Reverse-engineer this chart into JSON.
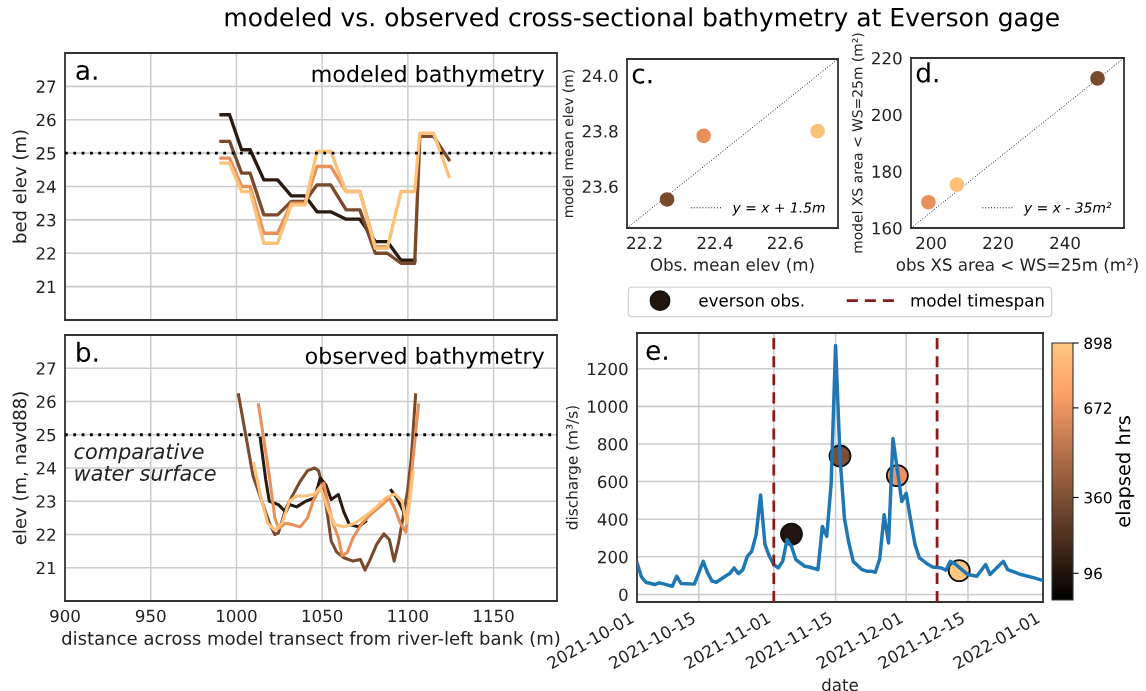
{
  "chart_data": [
    {
      "type": "line",
      "title": "modeled vs. observed cross-sectional bathymetry at Everson gage",
      "ylabel": "bed elev (m)",
      "annotations": [
        "a.",
        "modeled bathymetry"
      ],
      "xlim": [
        900,
        1187
      ],
      "xticks": [
        900,
        950,
        1000,
        1050,
        1100,
        1150
      ],
      "ylim": [
        20,
        28
      ],
      "yticks": [
        21,
        22,
        23,
        24,
        25,
        26,
        27
      ],
      "tick_labels": "y",
      "grid": true,
      "x": [
        991,
        996,
        1003,
        1008,
        1016,
        1024,
        1032,
        1040,
        1047,
        1055,
        1064,
        1072,
        1081,
        1088,
        1096,
        1104,
        1107,
        1115,
        1124
      ],
      "ref_lines": [
        {
          "axis": "y",
          "value": 25,
          "color": "#000000",
          "line_style": "dotted"
        }
      ],
      "series": [
        {
          "color": "#2b1a10",
          "values": [
            26.15,
            26.15,
            25.1,
            25.1,
            24.2,
            24.2,
            23.72,
            23.72,
            23.24,
            23.24,
            23.02,
            23.02,
            22.35,
            22.35,
            21.79,
            21.79,
            null,
            null,
            null
          ]
        },
        {
          "color": "#7a4a2c",
          "values": [
            25.35,
            25.35,
            24.4,
            24.4,
            23.15,
            23.15,
            23.55,
            23.55,
            24.05,
            24.05,
            23.3,
            23.3,
            22.0,
            22.0,
            21.7,
            21.7,
            25.5,
            25.5,
            24.8
          ]
        },
        {
          "color": "#e8915a",
          "values": [
            24.85,
            24.85,
            24.0,
            24.0,
            22.6,
            22.6,
            23.5,
            23.5,
            24.6,
            24.6,
            23.85,
            23.85,
            22.2,
            22.2,
            null,
            null,
            null,
            null,
            null
          ]
        },
        {
          "color": "#fdc27a",
          "values": [
            24.7,
            24.7,
            23.85,
            23.85,
            22.3,
            22.3,
            23.45,
            23.45,
            25.05,
            25.05,
            23.85,
            23.85,
            22.15,
            22.15,
            23.85,
            23.85,
            25.6,
            25.6,
            24.3
          ]
        }
      ]
    },
    {
      "type": "line",
      "xlabel": "distance across model transect from river-left bank (m)",
      "ylabel": "elev (m, navd88)",
      "annotations": [
        "b.",
        "observed bathymetry"
      ],
      "xlim": [
        900,
        1187
      ],
      "xticks": [
        900,
        950,
        1000,
        1050,
        1100,
        1150
      ],
      "ylim": [
        20,
        28
      ],
      "yticks": [
        21,
        22,
        23,
        24,
        25,
        26,
        27
      ],
      "grid": true,
      "ref_lines": [
        {
          "axis": "y",
          "value": 25,
          "label": "comparative\nwater surface",
          "color": "#000000",
          "line_style": "dotted"
        }
      ],
      "series": [
        {
          "color": "#7a4a2c",
          "x": [
            1001.2,
            1009.7,
            1019.2,
            1022.4,
            1024.5,
            1028.8,
            1033,
            1037.2,
            1041.5,
            1045.7,
            1047.9,
            1051,
            1053.2,
            1055.3,
            1058.5,
            1062.7,
            1068,
            1072.3,
            1075,
            1077.6,
            1081.8,
            1086,
            1089.2,
            1092,
            1094.5,
            1097.7,
            1099.8,
            1102,
            1104.5
          ],
          "values": [
            26.2,
            23.76,
            22.35,
            22.0,
            22.05,
            22.78,
            23.2,
            23.6,
            23.92,
            24.0,
            23.92,
            23.3,
            22.56,
            21.8,
            21.47,
            21.3,
            21.2,
            21.25,
            20.93,
            21.2,
            21.7,
            22.02,
            21.85,
            21.2,
            21.74,
            22.67,
            23.3,
            24.3,
            26.2
          ]
        },
        {
          "color": "#2b1a10",
          "x": [
            1013.9,
            1017.1,
            1019.2,
            1024.5,
            1028.8,
            1030.9,
            1035.1,
            1040.4,
            1045.7,
            1048.9,
            1052.1,
            1055.3,
            1059.5,
            1062.7,
            1065.9,
            1071.2,
            1075.4,
            1081.8,
            1086,
            1090.3,
            1093.5,
            1096.6,
            1098.8
          ],
          "values": [
            24.9,
            23.65,
            23.0,
            22.9,
            22.67,
            22.9,
            22.83,
            23.0,
            23.1,
            23.7,
            23.5,
            23.05,
            23.2,
            22.67,
            22.3,
            22.23,
            22.4,
            null,
            null,
            23.33,
            23.1,
            22.78,
            22.56
          ]
        },
        {
          "color": "#e8915a",
          "x": [
            1012.9,
            1016,
            1019.2,
            1022.4,
            1024.5,
            1028.8,
            1033,
            1037.2,
            1041.5,
            1044.7,
            1047.9,
            1051,
            1053.2,
            1056.3,
            1059.5,
            1061.6,
            1064.8,
            1068,
            1073.3,
            1079.7,
            1086,
            1089.2,
            1092.4,
            1095.6,
            1098.8,
            1102,
            1106.2
          ],
          "values": [
            25.9,
            24.85,
            23.76,
            22.5,
            22.18,
            22.34,
            22.29,
            22.23,
            22.5,
            23.0,
            23.33,
            23.54,
            23.0,
            22.34,
            21.9,
            21.36,
            21.47,
            21.9,
            22.34,
            22.67,
            22.94,
            23.1,
            22.78,
            22.34,
            22.07,
            23.76,
            25.9
          ]
        },
        {
          "color": "#fdc27a",
          "x": [
            1010.1,
            1013.9,
            1018.2,
            1022.4,
            1026.6,
            1030.9,
            1035.1,
            1040.4,
            1045.7,
            1048.9,
            1053.2,
            1057.4,
            1062.7,
            1069.1,
            1075.4,
            1081.8,
            1087.1,
            1092.4,
            1096.6,
            1099.2,
            1100.9,
            1103
          ],
          "values": [
            24.14,
            23.2,
            22.34,
            22.13,
            22.34,
            23.0,
            23.16,
            23.16,
            23.22,
            23.43,
            22.78,
            22.29,
            22.23,
            22.34,
            22.56,
            22.83,
            23.1,
            23.22,
            23.0,
            22.34,
            22.9,
            23.87
          ]
        }
      ]
    },
    {
      "type": "scatter",
      "xlabel": "Obs. mean elev (m)",
      "ylabel": "model mean elev (m)",
      "annotations": [
        "c."
      ],
      "xlim": [
        22.15,
        22.75
      ],
      "xticks": [
        22.2,
        22.4,
        22.6
      ],
      "ylim": [
        23.45,
        24.06
      ],
      "yticks": [
        23.6,
        23.8,
        {
          "value": 24,
          "label": "24.0"
        }
      ],
      "grid": false,
      "legend": "bottom right",
      "series": [
        {
          "x": [
            22.264,
            22.368,
            22.692
          ],
          "values": [
            23.553,
            23.783,
            23.8
          ],
          "colors": [
            "#7a4a2c",
            "#e8915a",
            "#fdc27a"
          ]
        },
        {
          "type": "line",
          "name": "y = x + 1.5m",
          "color": "#000000",
          "line_style": "dotted",
          "x": [
            22.15,
            22.75
          ],
          "values": [
            23.45,
            24.06
          ]
        }
      ]
    },
    {
      "type": "scatter",
      "xlabel": "obs XS area < WS=25m (m²)",
      "ylabel": "model XS area < WS=25m (m²)",
      "annotations": [
        "d."
      ],
      "xlim": [
        194,
        257.6
      ],
      "xticks": [
        200,
        220,
        240
      ],
      "ylim": [
        160,
        220
      ],
      "yticks": [
        160,
        180,
        200,
        220
      ],
      "grid": false,
      "legend": "bottom right",
      "series": [
        {
          "x": [
            249.7,
            199.2,
            207.7
          ],
          "values": [
            212.8,
            169.1,
            175.3
          ],
          "colors": [
            "#7a4a2c",
            "#e8915a",
            "#fdc27a"
          ]
        },
        {
          "type": "line",
          "name": "y = x - 35m²",
          "color": "#000000",
          "line_style": "dotted",
          "x": [
            194,
            257.6
          ],
          "values": [
            160,
            220
          ]
        }
      ]
    },
    {
      "type": "line",
      "xlabel": "date",
      "ylabel": "discharge (m³/s)",
      "clabel": "elapsed hrs",
      "annotations": [
        "e."
      ],
      "xlim": [
        "2021-10-01",
        "2022-01-01"
      ],
      "xticks": [
        "2021-10-01",
        "2021-10-15",
        "2021-11-01",
        "2021-11-15",
        "2021-12-01",
        "2021-12-15",
        "2022-01-01"
      ],
      "ylim": [
        -40,
        1390
      ],
      "yticks": [
        0,
        200,
        400,
        600,
        800,
        1000,
        1200
      ],
      "clim": [
        3,
        898
      ],
      "cticks": [
        96,
        360,
        672,
        898
      ],
      "grid": true,
      "legend": "top",
      "ref_lines": [
        {
          "axis": "x",
          "value": "2021-11-01",
          "label": "model timespan",
          "color": "#8b1a1a",
          "line_style": "dashed"
        },
        {
          "axis": "x",
          "value": "2021-12-08",
          "color": "#8b1a1a",
          "line_style": "dashed"
        }
      ],
      "series": [
        {
          "color": "#1f77b4",
          "x": [
            "2021-10-01",
            "2021-10-02",
            "2021-10-03",
            "2021-10-05",
            "2021-10-06",
            "2021-10-07",
            "2021-10-09",
            "2021-10-10",
            "2021-10-11",
            "2021-10-14",
            "2021-10-15",
            "2021-10-16",
            "2021-10-17",
            "2021-10-18",
            "2021-10-19",
            "2021-10-21",
            "2021-10-22",
            "2021-10-23",
            "2021-10-24",
            "2021-10-25",
            "2021-10-26",
            "2021-10-27",
            "2021-10-28",
            "2021-10-29",
            "2021-10-30",
            "2021-10-31",
            "2021-11-01",
            "2021-11-02",
            "2021-11-03",
            "2021-11-04",
            "2021-11-05",
            "2021-11-06",
            "2021-11-08",
            "2021-11-09",
            "2021-11-11",
            "2021-11-12",
            "2021-11-13",
            "2021-11-14",
            "2021-11-15",
            "2021-11-16",
            "2021-11-17",
            "2021-11-18",
            "2021-11-19",
            "2021-11-21",
            "2021-11-22",
            "2021-11-23",
            "2021-11-24",
            "2021-11-25",
            "2021-11-26",
            "2021-11-27",
            "2021-11-28",
            "2021-11-29",
            "2021-11-30",
            "2021-12-01",
            "2021-12-02",
            "2021-12-03",
            "2021-12-04",
            "2021-12-06",
            "2021-12-07",
            "2021-12-09",
            "2021-12-10",
            "2021-12-11",
            "2021-12-12",
            "2021-12-14",
            "2021-12-15",
            "2021-12-17",
            "2021-12-19",
            "2021-12-20",
            "2021-12-23",
            "2021-12-24",
            "2021-12-27",
            "2021-12-30",
            "2022-01-01"
          ],
          "values": [
            168,
            94,
            65,
            53,
            62,
            56,
            44,
            97,
            58,
            55,
            115,
            176,
            115,
            71,
            65,
            97,
            111,
            141,
            111,
            132,
            203,
            229,
            318,
            529,
            265,
            203,
            159,
            141,
            176,
            291,
            256,
            185,
            150,
            146,
            132,
            362,
            309,
            591,
            1323,
            732,
            406,
            274,
            176,
            132,
            124,
            124,
            118,
            189,
            424,
            274,
            829,
            662,
            494,
            538,
            397,
            265,
            194,
            159,
            146,
            141,
            129,
            176,
            164,
            124,
            106,
            97,
            159,
            106,
            176,
            132,
            106,
            88,
            74
          ]
        },
        {
          "type": "scatter",
          "name": "everson obs.",
          "marker": "circle",
          "x": [
            "2021-11-05",
            "2021-11-16",
            "2021-11-29",
            "2021-12-13"
          ],
          "values": [
            321,
            736,
            632,
            127
          ],
          "colors": [
            "#21150d",
            "#7f4f33",
            "#ee955f",
            "#ffc77f"
          ]
        }
      ]
    }
  ]
}
